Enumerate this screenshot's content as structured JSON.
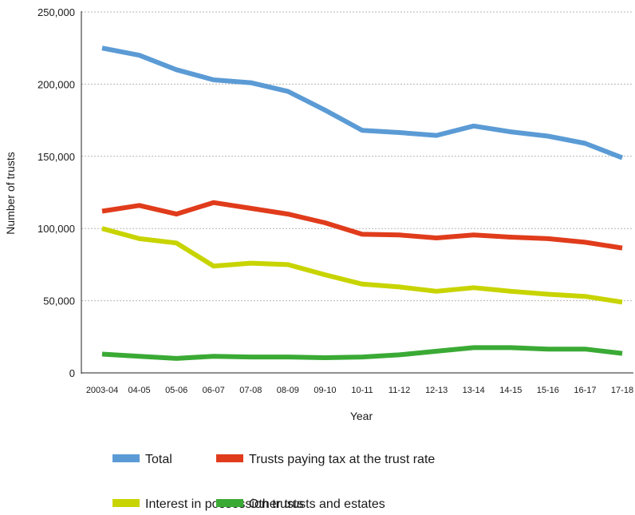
{
  "chart_data": {
    "type": "line",
    "xlabel": "Year",
    "ylabel": "Number of trusts",
    "ylim": [
      0,
      250000
    ],
    "yticks": [
      "250,000",
      "200,000",
      "150,000",
      "100,000",
      "50,000",
      "0"
    ],
    "grid": "horizontal dotted",
    "legend_position": "bottom",
    "categories": [
      "2003-04",
      "04-05",
      "05-06",
      "06-07",
      "07-08",
      "08-09",
      "09-10",
      "10-11",
      "11-12",
      "12-13",
      "13-14",
      "14-15",
      "15-16",
      "16-17",
      "17-18"
    ],
    "series": [
      {
        "name": "Total",
        "color": "#5b9bd5",
        "values": [
          225000,
          220000,
          210000,
          203000,
          201000,
          195000,
          182000,
          168000,
          166500,
          164500,
          171000,
          167000,
          164000,
          159000,
          149000
        ]
      },
      {
        "name": "Trusts paying tax at the trust rate",
        "color": "#e03c1c",
        "values": [
          112000,
          116000,
          110000,
          118000,
          114000,
          110000,
          104000,
          96000,
          95500,
          93500,
          95500,
          94000,
          93000,
          90500,
          86500
        ]
      },
      {
        "name": "Interest in possession trusts",
        "color": "#c8d400",
        "values": [
          100000,
          93000,
          90000,
          74000,
          76000,
          75000,
          68000,
          61500,
          59500,
          56500,
          59000,
          56500,
          54500,
          53000,
          49000
        ]
      },
      {
        "name": "Other trusts and estates",
        "color": "#3aaa35",
        "values": [
          13000,
          11500,
          10000,
          11500,
          11000,
          11000,
          10500,
          11000,
          12500,
          15000,
          17500,
          17500,
          16500,
          16500,
          13500
        ]
      }
    ]
  }
}
